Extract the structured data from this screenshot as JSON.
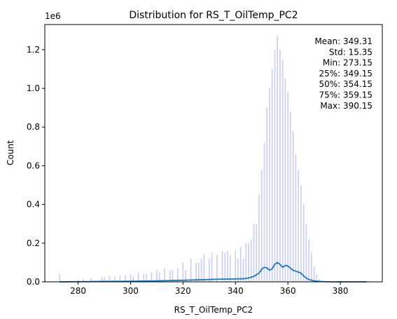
{
  "chart_data": {
    "type": "bar",
    "title": "Distribution for RS_T_OilTemp_PC2",
    "xlabel": "RS_T_OilTemp_PC2",
    "ylabel": "Count",
    "y_offset_text": "1e6",
    "xlim": [
      267.3,
      396.0
    ],
    "ylim": [
      0,
      1.33
    ],
    "x_ticks": [
      280,
      300,
      320,
      340,
      360,
      380
    ],
    "y_ticks": [
      0.0,
      0.2,
      0.4,
      0.6,
      0.8,
      1.0,
      1.2
    ],
    "x_tick_labels": [
      "280",
      "300",
      "320",
      "340",
      "360",
      "380"
    ],
    "y_tick_labels": [
      "0.0",
      "0.2",
      "0.4",
      "0.6",
      "0.8",
      "1.0",
      "1.2"
    ],
    "grid": false,
    "colors": {
      "bars": "#c9cdf2",
      "kde": "#1f77b4",
      "axes": "#000000"
    },
    "histogram": {
      "x": [
        273,
        280,
        282,
        285,
        289,
        290,
        292,
        294,
        296,
        298,
        300,
        301,
        303,
        305,
        306,
        308,
        310,
        311,
        313,
        315,
        316,
        318,
        320,
        321,
        323,
        325,
        326,
        327,
        328,
        330,
        331,
        333,
        335,
        336,
        337,
        338,
        340,
        341,
        342,
        343,
        344,
        345,
        346,
        347,
        348,
        349,
        350,
        351,
        352,
        353,
        354,
        355,
        356,
        357,
        358,
        359,
        360,
        361,
        362,
        363,
        364,
        365,
        366,
        367,
        368,
        369,
        370,
        371,
        372
      ],
      "values": [
        0.04,
        0.01,
        0.015,
        0.02,
        0.025,
        0.025,
        0.03,
        0.025,
        0.03,
        0.035,
        0.04,
        0.03,
        0.05,
        0.04,
        0.04,
        0.05,
        0.06,
        0.05,
        0.07,
        0.06,
        0.06,
        0.07,
        0.1,
        0.06,
        0.12,
        0.1,
        0.1,
        0.12,
        0.14,
        0.12,
        0.15,
        0.14,
        0.16,
        0.15,
        0.16,
        0.14,
        0.16,
        0.12,
        0.18,
        0.12,
        0.2,
        0.2,
        0.22,
        0.3,
        0.3,
        0.45,
        0.58,
        0.72,
        0.9,
        1.0,
        1.1,
        1.2,
        1.27,
        1.2,
        1.15,
        1.05,
        0.98,
        0.88,
        0.78,
        0.66,
        0.58,
        0.5,
        0.4,
        0.3,
        0.22,
        0.15,
        0.08,
        0.04,
        0.015
      ]
    },
    "kde": {
      "x": [
        273,
        280,
        290,
        300,
        310,
        320,
        330,
        335,
        340,
        343,
        345,
        347,
        349,
        350,
        351,
        352,
        353,
        354,
        355,
        356,
        357,
        358,
        359,
        360,
        361,
        362,
        363,
        364,
        365,
        366,
        367,
        368,
        370,
        372,
        375,
        380,
        390
      ],
      "values": [
        0.0,
        0.001,
        0.002,
        0.003,
        0.005,
        0.008,
        0.012,
        0.014,
        0.015,
        0.016,
        0.02,
        0.028,
        0.045,
        0.065,
        0.075,
        0.072,
        0.06,
        0.068,
        0.09,
        0.1,
        0.09,
        0.075,
        0.085,
        0.082,
        0.07,
        0.06,
        0.055,
        0.05,
        0.045,
        0.03,
        0.02,
        0.012,
        0.005,
        0.002,
        0.0005,
        0.0,
        0.0
      ]
    },
    "stats": [
      "Mean: 349.31",
      "Std: 15.35",
      "Min: 273.15",
      "25%: 349.15",
      "50%: 354.15",
      "75%: 359.15",
      "Max: 390.15"
    ]
  }
}
